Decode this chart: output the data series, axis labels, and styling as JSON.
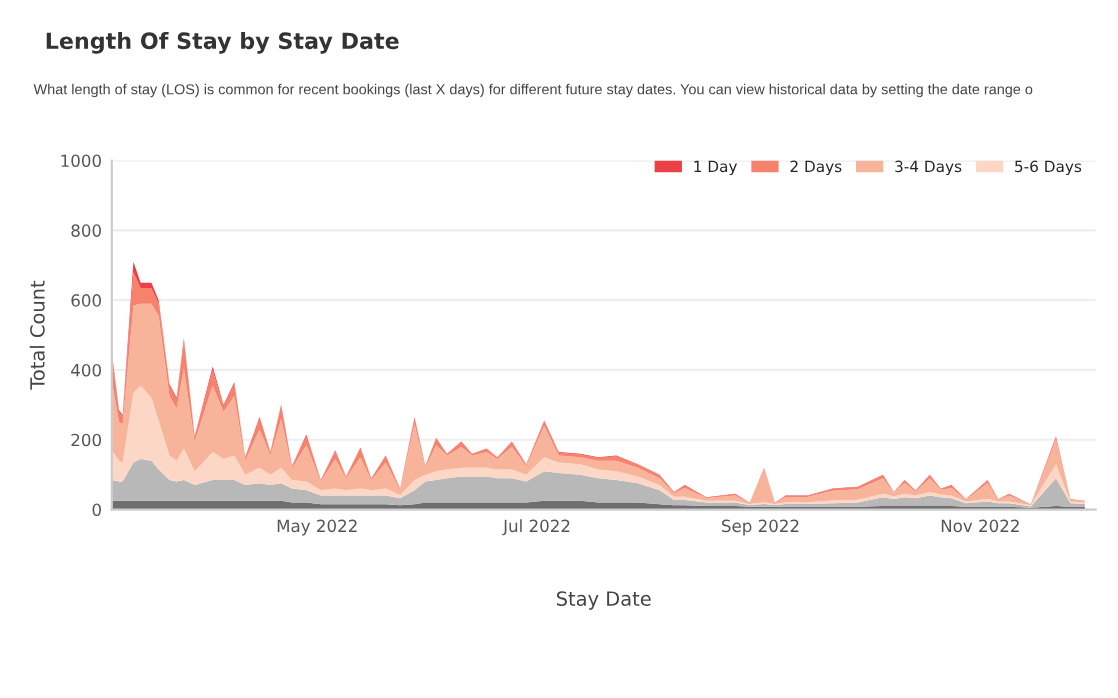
{
  "chart_data": {
    "type": "area",
    "stacked": true,
    "title": "Length Of Stay by Stay Date",
    "subtitle": "What length of stay (LOS) is common for recent bookings (last X days) for different future stay dates. You can view historical data by setting the date range o",
    "xlabel": "Stay Date",
    "ylabel": "Total Count",
    "x": [
      "2022-03-05",
      "2022-03-07",
      "2022-03-08",
      "2022-03-11",
      "2022-03-13",
      "2022-03-16",
      "2022-03-18",
      "2022-03-21",
      "2022-03-23",
      "2022-03-25",
      "2022-03-28",
      "2022-04-02",
      "2022-04-05",
      "2022-04-08",
      "2022-04-11",
      "2022-04-15",
      "2022-04-18",
      "2022-04-21",
      "2022-04-24",
      "2022-04-28",
      "2022-05-02",
      "2022-05-06",
      "2022-05-09",
      "2022-05-13",
      "2022-05-16",
      "2022-05-20",
      "2022-05-24",
      "2022-05-28",
      "2022-05-31",
      "2022-06-03",
      "2022-06-06",
      "2022-06-10",
      "2022-06-13",
      "2022-06-17",
      "2022-06-20",
      "2022-06-24",
      "2022-06-28",
      "2022-07-03",
      "2022-07-07",
      "2022-07-13",
      "2022-07-18",
      "2022-07-23",
      "2022-07-29",
      "2022-08-04",
      "2022-08-08",
      "2022-08-11",
      "2022-08-17",
      "2022-08-25",
      "2022-08-29",
      "2022-09-02",
      "2022-09-05",
      "2022-09-08",
      "2022-09-14",
      "2022-09-21",
      "2022-09-28",
      "2022-10-05",
      "2022-10-08",
      "2022-10-11",
      "2022-10-14",
      "2022-10-18",
      "2022-10-21",
      "2022-10-24",
      "2022-10-28",
      "2022-11-03",
      "2022-11-06",
      "2022-11-09",
      "2022-11-15",
      "2022-11-22",
      "2022-11-26",
      "2022-11-30"
    ],
    "series": [
      {
        "color": "#6e6e6e",
        "values": [
          25,
          25,
          25,
          25,
          25,
          25,
          25,
          25,
          25,
          25,
          25,
          25,
          25,
          25,
          25,
          25,
          25,
          25,
          20,
          20,
          15,
          15,
          15,
          15,
          15,
          15,
          12,
          15,
          20,
          20,
          20,
          20,
          20,
          20,
          20,
          20,
          20,
          25,
          25,
          25,
          20,
          20,
          20,
          15,
          12,
          12,
          10,
          10,
          8,
          8,
          8,
          8,
          8,
          8,
          8,
          10,
          10,
          10,
          10,
          10,
          10,
          10,
          8,
          8,
          8,
          8,
          5,
          10,
          8,
          8
        ]
      },
      {
        "color": "#b8b8b8",
        "values": [
          60,
          55,
          55,
          110,
          120,
          115,
          90,
          60,
          55,
          60,
          45,
          60,
          60,
          60,
          45,
          50,
          45,
          50,
          40,
          35,
          25,
          25,
          25,
          25,
          25,
          25,
          20,
          40,
          60,
          65,
          70,
          75,
          75,
          75,
          70,
          70,
          60,
          85,
          80,
          75,
          70,
          65,
          55,
          40,
          15,
          15,
          10,
          10,
          5,
          8,
          5,
          8,
          8,
          10,
          12,
          25,
          20,
          25,
          22,
          30,
          25,
          22,
          10,
          15,
          10,
          10,
          4,
          80,
          10,
          8
        ]
      },
      {
        "name": "5-6 Days",
        "color": "#fdd7c5",
        "values": [
          85,
          60,
          55,
          200,
          210,
          180,
          140,
          70,
          60,
          90,
          40,
          80,
          60,
          70,
          30,
          45,
          30,
          45,
          25,
          25,
          15,
          20,
          15,
          20,
          15,
          20,
          10,
          30,
          20,
          25,
          25,
          25,
          25,
          25,
          25,
          25,
          20,
          40,
          30,
          30,
          25,
          25,
          20,
          15,
          10,
          10,
          5,
          5,
          3,
          5,
          3,
          5,
          5,
          8,
          8,
          10,
          8,
          10,
          8,
          10,
          8,
          8,
          5,
          8,
          5,
          5,
          3,
          40,
          5,
          4
        ]
      },
      {
        "name": "3-4 Days",
        "color": "#f7b49b",
        "values": [
          200,
          110,
          110,
          250,
          235,
          270,
          300,
          170,
          150,
          230,
          85,
          190,
          135,
          170,
          40,
          110,
          55,
          140,
          33,
          105,
          25,
          85,
          35,
          90,
          30,
          75,
          15,
          160,
          20,
          75,
          40,
          60,
          35,
          45,
          30,
          65,
          25,
          90,
          20,
          20,
          25,
          30,
          25,
          20,
          10,
          25,
          8,
          15,
          3,
          95,
          3,
          15,
          15,
          28,
          30,
          45,
          10,
          32,
          12,
          40,
          14,
          22,
          5,
          45,
          5,
          17,
          2,
          70,
          5,
          4
        ]
      },
      {
        "name": "2 Days",
        "color": "#f6826c",
        "values": [
          70,
          30,
          20,
          95,
          45,
          45,
          35,
          30,
          25,
          75,
          12,
          45,
          17,
          35,
          8,
          30,
          8,
          35,
          5,
          25,
          4,
          22,
          4,
          25,
          4,
          18,
          2,
          17,
          4,
          17,
          4,
          13,
          4,
          9,
          4,
          13,
          4,
          13,
          8,
          8,
          8,
          13,
          8,
          8,
          2,
          6,
          1,
          4,
          1,
          3,
          1,
          3,
          3,
          5,
          6,
          8,
          2,
          6,
          3,
          8,
          3,
          6,
          2,
          7,
          2,
          4,
          1,
          8,
          2,
          1
        ]
      },
      {
        "name": "1 Day",
        "color": "#ec3f46",
        "values": [
          10,
          5,
          5,
          30,
          15,
          15,
          10,
          5,
          5,
          10,
          3,
          10,
          3,
          5,
          2,
          5,
          2,
          5,
          2,
          5,
          1,
          3,
          1,
          3,
          1,
          2,
          1,
          3,
          1,
          3,
          1,
          2,
          1,
          1,
          1,
          2,
          1,
          2,
          2,
          2,
          2,
          2,
          2,
          2,
          1,
          2,
          1,
          1,
          0,
          1,
          0,
          1,
          1,
          1,
          1,
          2,
          0,
          2,
          0,
          2,
          0,
          2,
          0,
          2,
          0,
          1,
          0,
          2,
          0,
          0
        ]
      }
    ],
    "xlim": [
      "2022-03-05",
      "2022-12-03"
    ],
    "xticks": [
      {
        "value": "2022-05-01",
        "label": "May 2022"
      },
      {
        "value": "2022-07-01",
        "label": "Jul 2022"
      },
      {
        "value": "2022-09-01",
        "label": "Sep 2022"
      },
      {
        "value": "2022-11-01",
        "label": "Nov 2022"
      }
    ],
    "ylim": [
      0,
      1000
    ],
    "yticks": [
      0,
      200,
      400,
      600,
      800,
      1000
    ],
    "grid": "y",
    "legend": "top right"
  }
}
